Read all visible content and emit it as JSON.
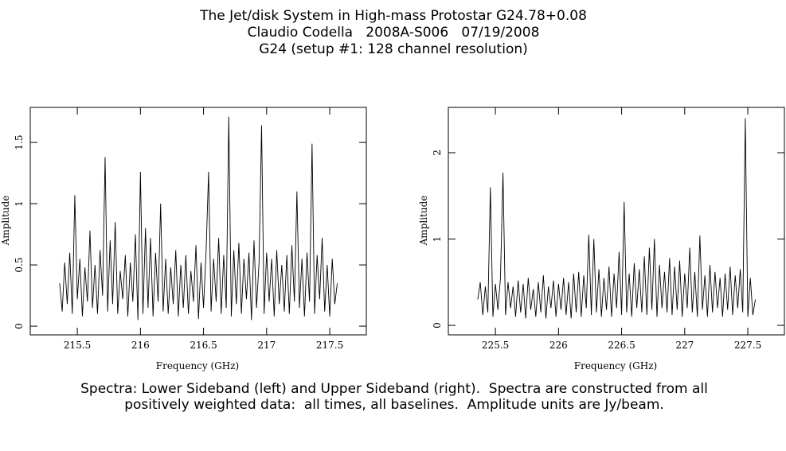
{
  "header": {
    "lines": [
      "The Jet/disk System in High-mass Protostar G24.78+0.08",
      "Claudio Codella   2008A-S006   07/19/2008",
      "G24 (setup #1: 128 channel resolution)"
    ]
  },
  "chart_data": [
    {
      "type": "line",
      "xlabel": "Frequency (GHz)",
      "ylabel": "Amplitude",
      "color": "#000000",
      "xlim": [
        215.127,
        217.79
      ],
      "ylim": [
        -0.071,
        1.786
      ],
      "xticks": [
        215.5,
        216,
        216.5,
        217,
        217.5
      ],
      "yticks": [
        0,
        0.5,
        1,
        1.5
      ],
      "x": [
        215.36,
        215.38,
        215.4,
        215.42,
        215.44,
        215.46,
        215.48,
        215.5,
        215.52,
        215.54,
        215.56,
        215.58,
        215.6,
        215.62,
        215.64,
        215.66,
        215.68,
        215.7,
        215.72,
        215.74,
        215.76,
        215.78,
        215.8,
        215.82,
        215.84,
        215.86,
        215.88,
        215.9,
        215.92,
        215.94,
        215.96,
        215.98,
        216,
        216.02,
        216.04,
        216.06,
        216.08,
        216.1,
        216.12,
        216.14,
        216.16,
        216.18,
        216.2,
        216.22,
        216.24,
        216.26,
        216.28,
        216.3,
        216.32,
        216.34,
        216.36,
        216.38,
        216.4,
        216.42,
        216.44,
        216.46,
        216.48,
        216.5,
        216.52,
        216.54,
        216.56,
        216.58,
        216.6,
        216.62,
        216.64,
        216.66,
        216.68,
        216.7,
        216.72,
        216.74,
        216.76,
        216.78,
        216.8,
        216.82,
        216.84,
        216.86,
        216.88,
        216.9,
        216.92,
        216.94,
        216.96,
        216.98,
        217,
        217.02,
        217.04,
        217.06,
        217.08,
        217.1,
        217.12,
        217.14,
        217.16,
        217.18,
        217.2,
        217.22,
        217.24,
        217.26,
        217.28,
        217.3,
        217.32,
        217.34,
        217.36,
        217.38,
        217.4,
        217.42,
        217.44,
        217.46,
        217.48,
        217.5,
        217.52,
        217.54,
        217.56
      ],
      "values": [
        0.35,
        0.12,
        0.52,
        0.18,
        0.6,
        0.1,
        1.07,
        0.22,
        0.55,
        0.08,
        0.48,
        0.2,
        0.78,
        0.15,
        0.5,
        0.1,
        0.62,
        0.25,
        1.38,
        0.12,
        0.7,
        0.18,
        0.85,
        0.1,
        0.45,
        0.22,
        0.58,
        0.08,
        0.52,
        0.2,
        0.75,
        0.05,
        1.26,
        0.1,
        0.8,
        0.15,
        0.72,
        0.08,
        0.6,
        0.2,
        1.0,
        0.12,
        0.55,
        0.1,
        0.48,
        0.18,
        0.62,
        0.08,
        0.5,
        0.15,
        0.58,
        0.1,
        0.45,
        0.2,
        0.66,
        0.06,
        0.52,
        0.15,
        0.6,
        1.26,
        0.12,
        0.55,
        0.2,
        0.72,
        0.1,
        0.58,
        0.15,
        1.71,
        0.08,
        0.62,
        0.18,
        0.68,
        0.1,
        0.55,
        0.22,
        0.6,
        0.05,
        0.7,
        0.15,
        0.52,
        1.64,
        0.1,
        0.6,
        0.2,
        0.55,
        0.08,
        0.62,
        0.18,
        0.5,
        0.12,
        0.58,
        0.1,
        0.66,
        0.2,
        1.1,
        0.15,
        0.55,
        0.08,
        0.6,
        0.2,
        1.49,
        0.1,
        0.58,
        0.22,
        0.72,
        0.12,
        0.5,
        0.08,
        0.55,
        0.18,
        0.35
      ]
    },
    {
      "type": "line",
      "xlabel": "Frequency (GHz)",
      "ylabel": "Amplitude",
      "color": "#000000",
      "xlim": [
        225.127,
        227.79
      ],
      "ylim": [
        -0.11,
        2.525
      ],
      "xticks": [
        225.5,
        226,
        226.5,
        227,
        227.5
      ],
      "yticks": [
        0,
        1,
        2
      ],
      "x": [
        225.36,
        225.38,
        225.4,
        225.42,
        225.44,
        225.46,
        225.48,
        225.5,
        225.52,
        225.54,
        225.56,
        225.58,
        225.6,
        225.62,
        225.64,
        225.66,
        225.68,
        225.7,
        225.72,
        225.74,
        225.76,
        225.78,
        225.8,
        225.82,
        225.84,
        225.86,
        225.88,
        225.9,
        225.92,
        225.94,
        225.96,
        225.98,
        226,
        226.02,
        226.04,
        226.06,
        226.08,
        226.1,
        226.12,
        226.14,
        226.16,
        226.18,
        226.2,
        226.22,
        226.24,
        226.26,
        226.28,
        226.3,
        226.32,
        226.34,
        226.36,
        226.38,
        226.4,
        226.42,
        226.44,
        226.46,
        226.48,
        226.5,
        226.52,
        226.54,
        226.56,
        226.58,
        226.6,
        226.62,
        226.64,
        226.66,
        226.68,
        226.7,
        226.72,
        226.74,
        226.76,
        226.78,
        226.8,
        226.82,
        226.84,
        226.86,
        226.88,
        226.9,
        226.92,
        226.94,
        226.96,
        226.98,
        227,
        227.02,
        227.04,
        227.06,
        227.08,
        227.1,
        227.12,
        227.14,
        227.16,
        227.18,
        227.2,
        227.22,
        227.24,
        227.26,
        227.28,
        227.3,
        227.32,
        227.34,
        227.36,
        227.38,
        227.4,
        227.42,
        227.44,
        227.46,
        227.48,
        227.5,
        227.52,
        227.54,
        227.56
      ],
      "values": [
        0.3,
        0.5,
        0.12,
        0.45,
        0.15,
        1.6,
        0.1,
        0.48,
        0.18,
        0.55,
        1.77,
        0.12,
        0.5,
        0.2,
        0.45,
        0.1,
        0.52,
        0.15,
        0.48,
        0.08,
        0.55,
        0.18,
        0.42,
        0.1,
        0.5,
        0.15,
        0.58,
        0.08,
        0.45,
        0.2,
        0.52,
        0.1,
        0.48,
        0.18,
        0.55,
        0.12,
        0.5,
        0.08,
        0.6,
        0.15,
        0.62,
        0.1,
        0.58,
        0.2,
        1.05,
        0.12,
        1.0,
        0.15,
        0.65,
        0.1,
        0.55,
        0.18,
        0.68,
        0.1,
        0.6,
        0.2,
        0.85,
        0.12,
        1.43,
        0.15,
        0.6,
        0.1,
        0.72,
        0.2,
        0.65,
        0.15,
        0.8,
        0.12,
        0.9,
        0.18,
        1.0,
        0.1,
        0.7,
        0.2,
        0.62,
        0.15,
        0.78,
        0.12,
        0.68,
        0.18,
        0.75,
        0.1,
        0.6,
        0.2,
        0.9,
        0.15,
        0.62,
        0.1,
        1.04,
        0.18,
        0.58,
        0.1,
        0.7,
        0.15,
        0.62,
        0.2,
        0.55,
        0.1,
        0.6,
        0.18,
        0.68,
        0.12,
        0.58,
        0.2,
        0.65,
        0.15,
        2.4,
        0.1,
        0.55,
        0.12,
        0.3
      ]
    }
  ],
  "caption": [
    "Spectra: Lower Sideband (left) and Upper Sideband (right).  Spectra are constructed from all",
    "positively weighted data:  all times, all baselines.  Amplitude units are Jy/beam."
  ]
}
